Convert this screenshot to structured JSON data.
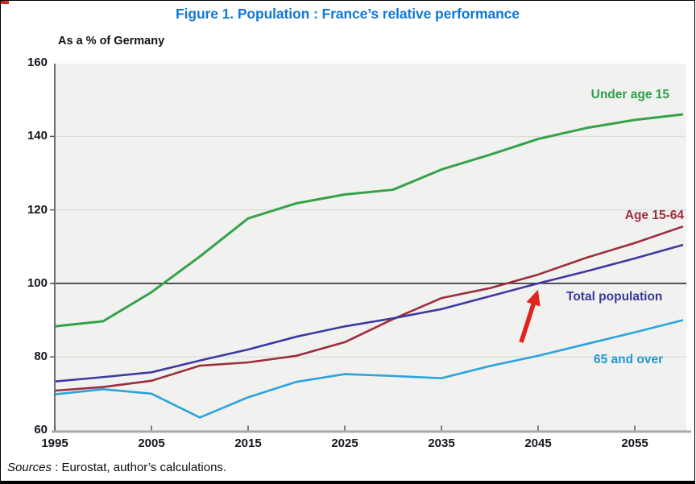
{
  "figure": {
    "title": "Figure 1. Population : France’s relative performance",
    "unit_label": "As a % of Germany",
    "sources_label": "Sources",
    "sources_rest": " : Eurostat, author’s calculations.",
    "border_color": "#000000",
    "corner_mark_color": "#d8281c"
  },
  "chart_data": {
    "type": "line",
    "title": "Figure 1. Population : France’s relative performance",
    "ylabel": "As a % of Germany",
    "xlabel": "",
    "x": [
      1995,
      2000,
      2005,
      2010,
      2015,
      2020,
      2025,
      2030,
      2035,
      2040,
      2045,
      2050,
      2055,
      2060
    ],
    "xticks": [
      1995,
      2005,
      2015,
      2025,
      2035,
      2045,
      2055
    ],
    "yticks": [
      60,
      80,
      100,
      120,
      140,
      160
    ],
    "xlim": [
      1995,
      2060
    ],
    "ylim": [
      60,
      160
    ],
    "grid": "horizontal-light",
    "reference_line_y": 100,
    "plot_background": "#f1f1ef",
    "gridline_color": "#dcdcda",
    "reference_line_color": "#3a3a3a",
    "axis_color": "#6e6e6e",
    "legend_position": "labels-on-chart",
    "series": [
      {
        "name": "Under age 15",
        "color": "#35a24a",
        "values": [
          88.3,
          89.7,
          97.6,
          107.3,
          117.7,
          121.8,
          124.2,
          125.5,
          131.0,
          135.0,
          139.3,
          142.3,
          144.5,
          146.0
        ]
      },
      {
        "name": "Age 15-64",
        "color": "#9c2e3e",
        "values": [
          70.8,
          71.8,
          73.5,
          77.6,
          78.5,
          80.3,
          84.0,
          90.3,
          96.0,
          98.7,
          102.4,
          107.0,
          111.0,
          115.5
        ]
      },
      {
        "name": "Total population",
        "color": "#3e3aa0",
        "values": [
          73.3,
          74.5,
          75.8,
          79.0,
          82.0,
          85.5,
          88.3,
          90.5,
          93.0,
          96.5,
          100.0,
          103.3,
          106.8,
          110.5
        ]
      },
      {
        "name": "65 and over",
        "color": "#2ba3de",
        "values": [
          69.8,
          71.2,
          70.0,
          63.5,
          69.0,
          73.2,
          75.3,
          74.8,
          74.2,
          77.5,
          80.3,
          83.5,
          86.7,
          90.0
        ]
      }
    ],
    "annotation": {
      "type": "arrow",
      "color": "#e0231c",
      "note": "points at Total population crossing 100 (≈2045)"
    }
  }
}
